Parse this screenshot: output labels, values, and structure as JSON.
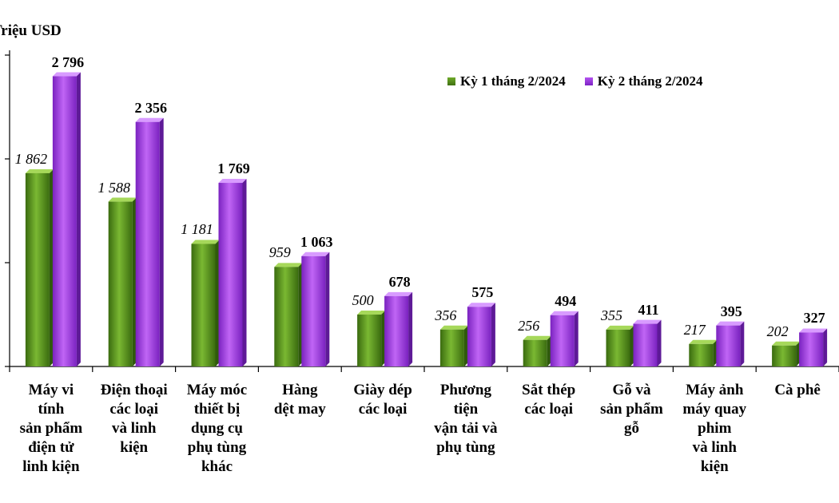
{
  "chart_data": {
    "type": "bar",
    "ylabel": "Triệu USD",
    "ylim": [
      0,
      3000
    ],
    "yticks": [
      0,
      1000,
      2000,
      3000
    ],
    "legend_position": "top-right",
    "categories": [
      "Máy vi tính sản phẩm điện tử linh kiện",
      "Điện thoại các loại và linh kiện",
      "Máy móc thiết bị dụng cụ phụ tùng khác",
      "Hàng dệt may",
      "Giày dép các loại",
      "Phương tiện vận tải và phụ tùng",
      "Sắt thép các loại",
      "Gỗ và sản phẩm gỗ",
      "Máy ảnh máy quay phim và linh kiện",
      "Cà phê"
    ],
    "category_lines": [
      [
        "Máy vi",
        "tính",
        "sản phẩm",
        "điện tử",
        "linh kiện"
      ],
      [
        "Điện thoại",
        "các loại",
        "và linh",
        "kiện"
      ],
      [
        "Máy móc",
        "thiết bị",
        "dụng cụ",
        "phụ tùng",
        "khác"
      ],
      [
        "Hàng",
        "dệt may"
      ],
      [
        "Giày dép",
        "các loại"
      ],
      [
        "Phương",
        "tiện",
        "vận tải và",
        "phụ tùng"
      ],
      [
        "Sắt thép",
        "các loại"
      ],
      [
        "Gỗ và",
        "sản phẩm",
        "gỗ"
      ],
      [
        "Máy ảnh",
        "máy quay",
        "phim",
        "và linh",
        "kiện"
      ],
      [
        "Cà phê"
      ]
    ],
    "series": [
      {
        "name": "Kỳ 1 tháng 2/2024",
        "color": "#4f8a1a",
        "values": [
          1862,
          1588,
          1181,
          959,
          500,
          356,
          256,
          355,
          217,
          202
        ],
        "value_labels": [
          "1 862",
          "1 588",
          "1 181",
          "959",
          "500",
          "356",
          "256",
          "355",
          "217",
          "202"
        ]
      },
      {
        "name": "Kỳ 2 tháng 2/2024",
        "color": "#9b3fe0",
        "values": [
          2796,
          2356,
          1769,
          1063,
          678,
          575,
          494,
          411,
          395,
          327
        ],
        "value_labels": [
          "2 796",
          "2 356",
          "1 769",
          "1 063",
          "678",
          "575",
          "494",
          "411",
          "395",
          "327"
        ]
      }
    ]
  }
}
